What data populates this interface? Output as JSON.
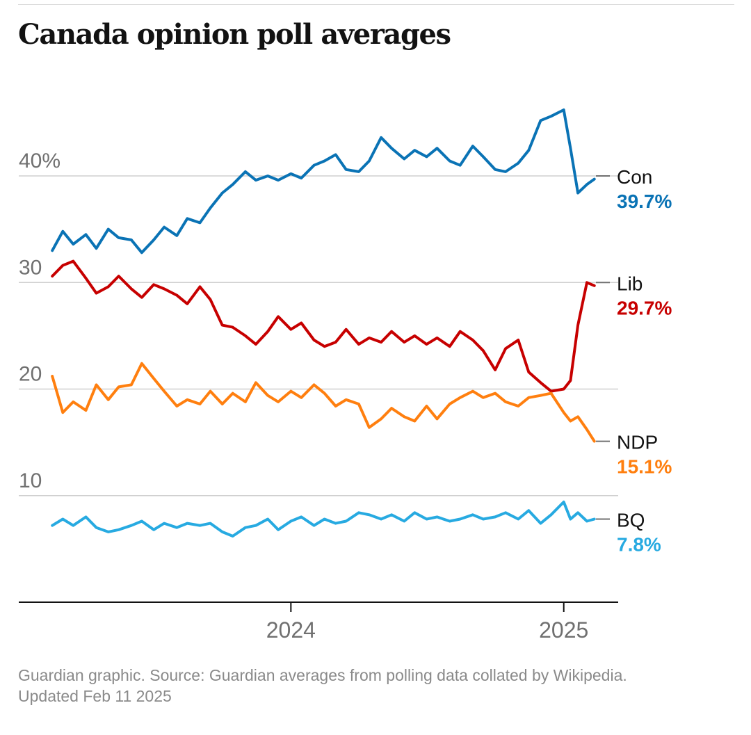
{
  "title": "Canada opinion poll averages",
  "footer": {
    "source": "Guardian graphic. Source: Guardian averages from polling data collated by Wikipedia.",
    "updated": "Updated Feb 11 2025"
  },
  "chart_data": {
    "type": "line",
    "title": "Canada opinion poll averages",
    "xlabel": "",
    "ylabel": "",
    "x_ticks": [
      {
        "label": "2024",
        "value": "2024-01-01"
      },
      {
        "label": "2025",
        "value": "2025-01-01"
      }
    ],
    "y_ticks": [
      {
        "label": "40%",
        "value": 40
      },
      {
        "label": "30",
        "value": 30
      },
      {
        "label": "20",
        "value": 20
      },
      {
        "label": "10",
        "value": 10
      }
    ],
    "xlim": [
      "2023-01-01",
      "2025-03-15"
    ],
    "ylim": [
      0,
      47
    ],
    "grid": true,
    "legend": "end-of-line labels",
    "series": [
      {
        "name": "Con",
        "latest_label": "39.7%",
        "color": "#0a73b5",
        "points": [
          [
            "2023-02-15",
            33.0
          ],
          [
            "2023-03-01",
            34.8
          ],
          [
            "2023-03-15",
            33.6
          ],
          [
            "2023-04-01",
            34.5
          ],
          [
            "2023-04-15",
            33.2
          ],
          [
            "2023-05-01",
            35.0
          ],
          [
            "2023-05-15",
            34.2
          ],
          [
            "2023-06-01",
            34.0
          ],
          [
            "2023-06-15",
            32.8
          ],
          [
            "2023-07-01",
            34.0
          ],
          [
            "2023-07-15",
            35.2
          ],
          [
            "2023-08-01",
            34.4
          ],
          [
            "2023-08-15",
            36.0
          ],
          [
            "2023-09-01",
            35.6
          ],
          [
            "2023-09-15",
            37.0
          ],
          [
            "2023-10-01",
            38.4
          ],
          [
            "2023-10-15",
            39.2
          ],
          [
            "2023-11-01",
            40.4
          ],
          [
            "2023-11-15",
            39.6
          ],
          [
            "2023-12-01",
            40.0
          ],
          [
            "2023-12-15",
            39.6
          ],
          [
            "2024-01-01",
            40.2
          ],
          [
            "2024-01-15",
            39.8
          ],
          [
            "2024-02-01",
            41.0
          ],
          [
            "2024-02-15",
            41.4
          ],
          [
            "2024-03-01",
            42.0
          ],
          [
            "2024-03-15",
            40.6
          ],
          [
            "2024-04-01",
            40.4
          ],
          [
            "2024-04-15",
            41.4
          ],
          [
            "2024-05-01",
            43.6
          ],
          [
            "2024-05-15",
            42.6
          ],
          [
            "2024-06-01",
            41.6
          ],
          [
            "2024-06-15",
            42.4
          ],
          [
            "2024-07-01",
            41.8
          ],
          [
            "2024-07-15",
            42.6
          ],
          [
            "2024-08-01",
            41.4
          ],
          [
            "2024-08-15",
            41.0
          ],
          [
            "2024-09-01",
            42.8
          ],
          [
            "2024-09-15",
            41.8
          ],
          [
            "2024-10-01",
            40.6
          ],
          [
            "2024-10-15",
            40.4
          ],
          [
            "2024-11-01",
            41.2
          ],
          [
            "2024-11-15",
            42.4
          ],
          [
            "2024-12-01",
            45.2
          ],
          [
            "2024-12-15",
            45.6
          ],
          [
            "2025-01-01",
            46.2
          ],
          [
            "2025-01-10",
            42.6
          ],
          [
            "2025-01-20",
            38.4
          ],
          [
            "2025-02-01",
            39.2
          ],
          [
            "2025-02-11",
            39.7
          ]
        ]
      },
      {
        "name": "Lib",
        "latest_label": "29.7%",
        "color": "#c70000",
        "points": [
          [
            "2023-02-15",
            30.6
          ],
          [
            "2023-03-01",
            31.6
          ],
          [
            "2023-03-15",
            32.0
          ],
          [
            "2023-04-01",
            30.4
          ],
          [
            "2023-04-15",
            29.0
          ],
          [
            "2023-05-01",
            29.6
          ],
          [
            "2023-05-15",
            30.6
          ],
          [
            "2023-06-01",
            29.4
          ],
          [
            "2023-06-15",
            28.6
          ],
          [
            "2023-07-01",
            29.8
          ],
          [
            "2023-07-15",
            29.4
          ],
          [
            "2023-08-01",
            28.8
          ],
          [
            "2023-08-15",
            28.0
          ],
          [
            "2023-09-01",
            29.6
          ],
          [
            "2023-09-15",
            28.4
          ],
          [
            "2023-10-01",
            26.0
          ],
          [
            "2023-10-15",
            25.8
          ],
          [
            "2023-11-01",
            25.0
          ],
          [
            "2023-11-15",
            24.2
          ],
          [
            "2023-12-01",
            25.4
          ],
          [
            "2023-12-15",
            26.8
          ],
          [
            "2024-01-01",
            25.6
          ],
          [
            "2024-01-15",
            26.2
          ],
          [
            "2024-02-01",
            24.6
          ],
          [
            "2024-02-15",
            24.0
          ],
          [
            "2024-03-01",
            24.4
          ],
          [
            "2024-03-15",
            25.6
          ],
          [
            "2024-04-01",
            24.2
          ],
          [
            "2024-04-15",
            24.8
          ],
          [
            "2024-05-01",
            24.4
          ],
          [
            "2024-05-15",
            25.4
          ],
          [
            "2024-06-01",
            24.4
          ],
          [
            "2024-06-15",
            25.0
          ],
          [
            "2024-07-01",
            24.2
          ],
          [
            "2024-07-15",
            24.8
          ],
          [
            "2024-08-01",
            24.0
          ],
          [
            "2024-08-15",
            25.4
          ],
          [
            "2024-09-01",
            24.6
          ],
          [
            "2024-09-15",
            23.6
          ],
          [
            "2024-10-01",
            21.8
          ],
          [
            "2024-10-15",
            23.8
          ],
          [
            "2024-11-01",
            24.6
          ],
          [
            "2024-11-15",
            21.6
          ],
          [
            "2024-12-01",
            20.6
          ],
          [
            "2024-12-15",
            19.8
          ],
          [
            "2025-01-01",
            20.0
          ],
          [
            "2025-01-10",
            20.8
          ],
          [
            "2025-01-20",
            26.0
          ],
          [
            "2025-02-01",
            30.0
          ],
          [
            "2025-02-11",
            29.7
          ]
        ]
      },
      {
        "name": "NDP",
        "latest_label": "15.1%",
        "color": "#ff7f0f",
        "points": [
          [
            "2023-02-15",
            21.2
          ],
          [
            "2023-03-01",
            17.8
          ],
          [
            "2023-03-15",
            18.8
          ],
          [
            "2023-04-01",
            18.0
          ],
          [
            "2023-04-15",
            20.4
          ],
          [
            "2023-05-01",
            19.0
          ],
          [
            "2023-05-15",
            20.2
          ],
          [
            "2023-06-01",
            20.4
          ],
          [
            "2023-06-15",
            22.4
          ],
          [
            "2023-07-01",
            21.0
          ],
          [
            "2023-07-15",
            19.8
          ],
          [
            "2023-08-01",
            18.4
          ],
          [
            "2023-08-15",
            19.0
          ],
          [
            "2023-09-01",
            18.6
          ],
          [
            "2023-09-15",
            19.8
          ],
          [
            "2023-10-01",
            18.6
          ],
          [
            "2023-10-15",
            19.6
          ],
          [
            "2023-11-01",
            18.8
          ],
          [
            "2023-11-15",
            20.6
          ],
          [
            "2023-12-01",
            19.4
          ],
          [
            "2023-12-15",
            18.8
          ],
          [
            "2024-01-01",
            19.8
          ],
          [
            "2024-01-15",
            19.2
          ],
          [
            "2024-02-01",
            20.4
          ],
          [
            "2024-02-15",
            19.6
          ],
          [
            "2024-03-01",
            18.4
          ],
          [
            "2024-03-15",
            19.0
          ],
          [
            "2024-04-01",
            18.6
          ],
          [
            "2024-04-15",
            16.4
          ],
          [
            "2024-05-01",
            17.2
          ],
          [
            "2024-05-15",
            18.2
          ],
          [
            "2024-06-01",
            17.4
          ],
          [
            "2024-06-15",
            17.0
          ],
          [
            "2024-07-01",
            18.4
          ],
          [
            "2024-07-15",
            17.2
          ],
          [
            "2024-08-01",
            18.6
          ],
          [
            "2024-08-15",
            19.2
          ],
          [
            "2024-09-01",
            19.8
          ],
          [
            "2024-09-15",
            19.2
          ],
          [
            "2024-10-01",
            19.6
          ],
          [
            "2024-10-15",
            18.8
          ],
          [
            "2024-11-01",
            18.4
          ],
          [
            "2024-11-15",
            19.2
          ],
          [
            "2024-12-01",
            19.4
          ],
          [
            "2024-12-15",
            19.6
          ],
          [
            "2025-01-01",
            17.8
          ],
          [
            "2025-01-10",
            17.0
          ],
          [
            "2025-01-20",
            17.4
          ],
          [
            "2025-02-01",
            16.2
          ],
          [
            "2025-02-11",
            15.1
          ]
        ]
      },
      {
        "name": "BQ",
        "latest_label": "7.8%",
        "color": "#27aae1",
        "points": [
          [
            "2023-02-15",
            7.2
          ],
          [
            "2023-03-01",
            7.8
          ],
          [
            "2023-03-15",
            7.2
          ],
          [
            "2023-04-01",
            8.0
          ],
          [
            "2023-04-15",
            7.0
          ],
          [
            "2023-05-01",
            6.6
          ],
          [
            "2023-05-15",
            6.8
          ],
          [
            "2023-06-01",
            7.2
          ],
          [
            "2023-06-15",
            7.6
          ],
          [
            "2023-07-01",
            6.8
          ],
          [
            "2023-07-15",
            7.4
          ],
          [
            "2023-08-01",
            7.0
          ],
          [
            "2023-08-15",
            7.4
          ],
          [
            "2023-09-01",
            7.2
          ],
          [
            "2023-09-15",
            7.4
          ],
          [
            "2023-10-01",
            6.6
          ],
          [
            "2023-10-15",
            6.2
          ],
          [
            "2023-11-01",
            7.0
          ],
          [
            "2023-11-15",
            7.2
          ],
          [
            "2023-12-01",
            7.8
          ],
          [
            "2023-12-15",
            6.8
          ],
          [
            "2024-01-01",
            7.6
          ],
          [
            "2024-01-15",
            8.0
          ],
          [
            "2024-02-01",
            7.2
          ],
          [
            "2024-02-15",
            7.8
          ],
          [
            "2024-03-01",
            7.4
          ],
          [
            "2024-03-15",
            7.6
          ],
          [
            "2024-04-01",
            8.4
          ],
          [
            "2024-04-15",
            8.2
          ],
          [
            "2024-05-01",
            7.8
          ],
          [
            "2024-05-15",
            8.2
          ],
          [
            "2024-06-01",
            7.6
          ],
          [
            "2024-06-15",
            8.4
          ],
          [
            "2024-07-01",
            7.8
          ],
          [
            "2024-07-15",
            8.0
          ],
          [
            "2024-08-01",
            7.6
          ],
          [
            "2024-08-15",
            7.8
          ],
          [
            "2024-09-01",
            8.2
          ],
          [
            "2024-09-15",
            7.8
          ],
          [
            "2024-10-01",
            8.0
          ],
          [
            "2024-10-15",
            8.4
          ],
          [
            "2024-11-01",
            7.8
          ],
          [
            "2024-11-15",
            8.6
          ],
          [
            "2024-12-01",
            7.4
          ],
          [
            "2024-12-15",
            8.2
          ],
          [
            "2025-01-01",
            9.4
          ],
          [
            "2025-01-10",
            7.8
          ],
          [
            "2025-01-20",
            8.4
          ],
          [
            "2025-02-01",
            7.6
          ],
          [
            "2025-02-11",
            7.8
          ]
        ]
      }
    ]
  }
}
